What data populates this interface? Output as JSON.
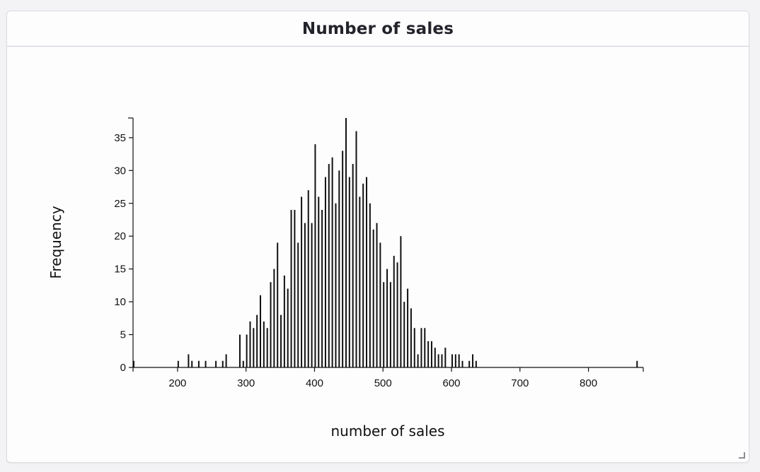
{
  "card": {
    "title": "Number of sales"
  },
  "chart_data": {
    "type": "bar",
    "title": "Number of sales",
    "xlabel": "number of sales",
    "ylabel": "Frequency",
    "xlim": [
      135,
      880
    ],
    "ylim": [
      0,
      38
    ],
    "xticks": [
      200,
      300,
      400,
      500,
      600,
      700,
      800
    ],
    "yticks": [
      0,
      5,
      10,
      15,
      20,
      25,
      30,
      35
    ],
    "grid": false,
    "x": [
      136,
      201,
      216,
      221,
      231,
      241,
      256,
      266,
      271,
      276,
      291,
      296,
      301,
      306,
      311,
      316,
      321,
      326,
      331,
      336,
      341,
      346,
      351,
      356,
      361,
      366,
      371,
      376,
      381,
      386,
      391,
      396,
      401,
      406,
      411,
      416,
      421,
      426,
      431,
      436,
      441,
      446,
      451,
      456,
      461,
      466,
      471,
      476,
      481,
      486,
      491,
      496,
      501,
      506,
      511,
      516,
      521,
      526,
      531,
      536,
      541,
      546,
      551,
      556,
      561,
      566,
      571,
      576,
      581,
      586,
      591,
      596,
      601,
      606,
      611,
      616,
      621,
      626,
      631,
      636,
      641,
      646,
      651,
      656,
      661,
      666,
      671,
      676,
      681,
      686,
      691,
      696,
      701,
      706,
      711,
      716,
      721,
      726,
      731,
      736,
      741,
      746,
      751,
      756,
      761,
      766,
      771,
      776,
      781,
      786,
      791,
      796,
      801,
      806,
      811,
      816,
      821,
      826,
      831,
      836,
      841,
      846,
      851,
      856,
      861,
      866,
      871
    ],
    "values": [
      1,
      1,
      2,
      1,
      1,
      1,
      1,
      1,
      2,
      0,
      5,
      1,
      5,
      7,
      6,
      8,
      11,
      7,
      6,
      13,
      15,
      19,
      8,
      14,
      12,
      24,
      24,
      19,
      26,
      22,
      27,
      22,
      34,
      26,
      24,
      29,
      31,
      32,
      25,
      30,
      33,
      38,
      29,
      31,
      36,
      26,
      28,
      29,
      25,
      21,
      22,
      19,
      13,
      15,
      13,
      17,
      16,
      20,
      10,
      12,
      9,
      6,
      2,
      6,
      6,
      4,
      4,
      3,
      2,
      2,
      3,
      0,
      2,
      2,
      2,
      1,
      0,
      1,
      2,
      1,
      0,
      0,
      0,
      0,
      0,
      0,
      0,
      0,
      0,
      0,
      0,
      0,
      0,
      0,
      0,
      0,
      0,
      0,
      0,
      0,
      0,
      0,
      0,
      0,
      0,
      0,
      0,
      0,
      0,
      0,
      0,
      0,
      0,
      0,
      0,
      0,
      0,
      0,
      0,
      0,
      0,
      0,
      0,
      0,
      0,
      0,
      1
    ]
  }
}
